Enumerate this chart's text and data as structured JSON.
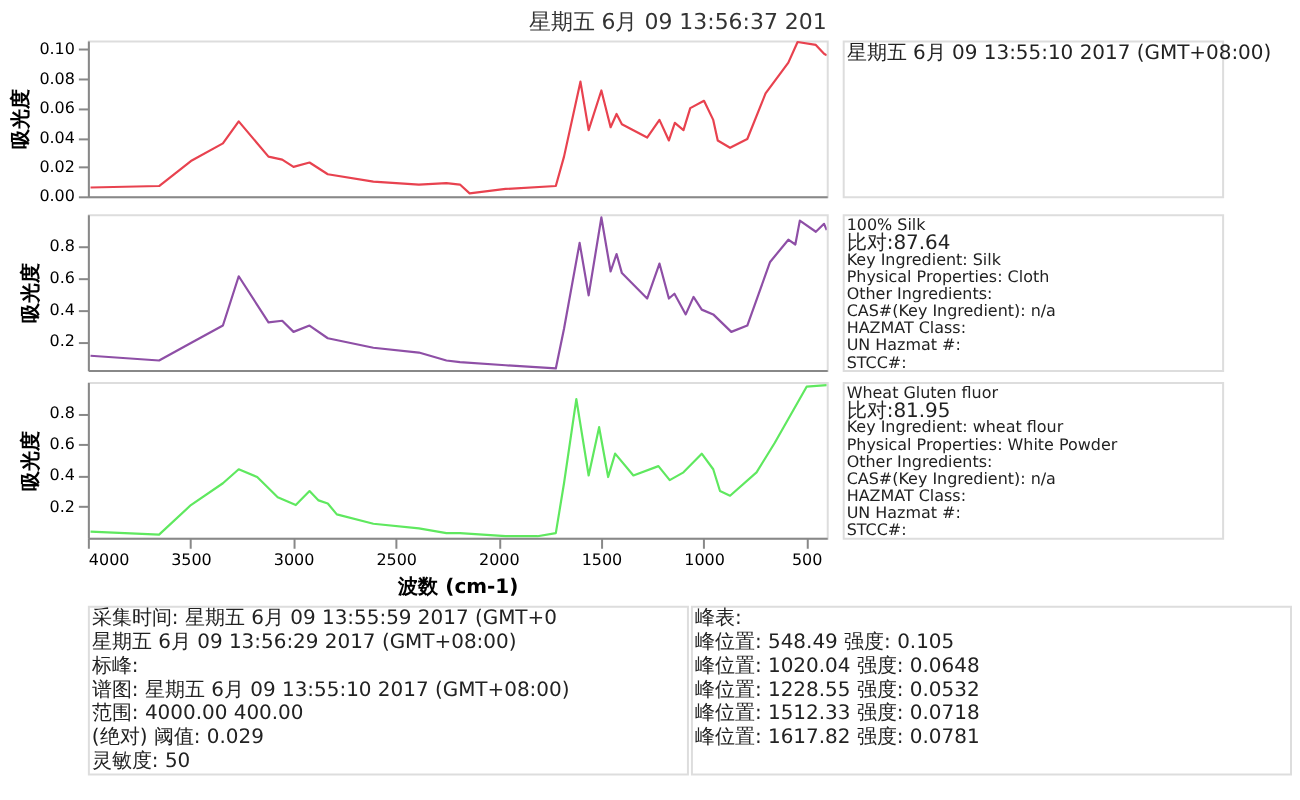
{
  "chart_data": [
    {
      "type": "line",
      "title": "星期五 6月 09 13:56:37 201",
      "ylabel": "吸光度",
      "xlim": [
        4000,
        400
      ],
      "xticks": [
        4000,
        3500,
        3000,
        2500,
        2000,
        1500,
        1000,
        500
      ],
      "ylim": [
        0,
        0.106
      ],
      "yticks": [
        {
          "value": 0,
          "label": "0.00"
        },
        {
          "value": 0.02,
          "label": "0.02"
        },
        {
          "value": 0.04,
          "label": "0.04"
        },
        {
          "value": 0.06,
          "label": "0.06"
        },
        {
          "value": 0.08,
          "label": "0.08"
        },
        {
          "value": 0.1,
          "label": "0.10"
        }
      ],
      "tick_labels": "y",
      "series": [
        {
          "color": "#e8424f",
          "x": [
            3987,
            3653,
            3498,
            3342,
            3265,
            3120,
            3053,
            2998,
            2920,
            2831,
            2609,
            2387,
            2253,
            2187,
            2140,
            1965,
            1720,
            1680,
            1600,
            1560,
            1498,
            1453,
            1424,
            1398,
            1275,
            1215,
            1169,
            1140,
            1098,
            1065,
            998,
            953,
            931,
            871,
            787,
            698,
            587,
            542,
            453,
            413,
            400
          ],
          "values": [
            0.006,
            0.007,
            0.024,
            0.036,
            0.051,
            0.027,
            0.025,
            0.02,
            0.023,
            0.015,
            0.01,
            0.008,
            0.009,
            0.008,
            0.002,
            0.005,
            0.007,
            0.027,
            0.078,
            0.045,
            0.072,
            0.047,
            0.056,
            0.049,
            0.04,
            0.052,
            0.038,
            0.05,
            0.045,
            0.06,
            0.065,
            0.052,
            0.038,
            0.033,
            0.039,
            0.07,
            0.091,
            0.105,
            0.103,
            0.097,
            0.096
          ]
        }
      ],
      "annotations": [
        "星期五 6月 09 13:55:10 2017 (GMT+08:00)"
      ]
    },
    {
      "type": "line",
      "ylabel": "吸光度",
      "xlim": [
        4000,
        400
      ],
      "xticks": [
        4000,
        3500,
        3000,
        2500,
        2000,
        1500,
        1000,
        500
      ],
      "ylim": [
        0.02,
        1.0
      ],
      "yticks": [
        0.2,
        0.4,
        0.6,
        0.8
      ],
      "tick_labels": "y",
      "series": [
        {
          "color": "#8e4fa6",
          "x": [
            3987,
            3653,
            3498,
            3342,
            3265,
            3120,
            3053,
            2998,
            2920,
            2831,
            2609,
            2387,
            2253,
            2187,
            1965,
            1720,
            1680,
            1604,
            1560,
            1498,
            1453,
            1424,
            1398,
            1275,
            1215,
            1169,
            1142,
            1087,
            1049,
            1009,
            953,
            865,
            787,
            676,
            587,
            553,
            531,
            453,
            413,
            400
          ],
          "values": [
            0.11,
            0.08,
            0.19,
            0.3,
            0.61,
            0.32,
            0.33,
            0.26,
            0.3,
            0.22,
            0.16,
            0.13,
            0.08,
            0.07,
            0.05,
            0.03,
            0.28,
            0.82,
            0.49,
            0.98,
            0.64,
            0.75,
            0.63,
            0.47,
            0.69,
            0.47,
            0.5,
            0.37,
            0.48,
            0.4,
            0.37,
            0.26,
            0.3,
            0.7,
            0.84,
            0.81,
            0.96,
            0.89,
            0.94,
            0.9
          ]
        }
      ],
      "annotations": [
        "100% Silk",
        "比对:87.64",
        "Key Ingredient:  Silk",
        "Physical Properties:  Cloth",
        "Other Ingredients:",
        "CAS#(Key Ingredient):  n/a",
        "HAZMAT Class:",
        "UN Hazmat #:",
        "STCC#:"
      ]
    },
    {
      "type": "line",
      "ylabel": "吸光度",
      "xlabel": "波数 (cm-1)",
      "xlim": [
        4000,
        400
      ],
      "xticks": [
        4000,
        3500,
        3000,
        2500,
        2000,
        1500,
        1000,
        500
      ],
      "ylim": [
        0,
        1.0
      ],
      "yticks": [
        0.2,
        0.4,
        0.6,
        0.8
      ],
      "series": [
        {
          "color": "#5fe85f",
          "x": [
            3987,
            3653,
            3498,
            3342,
            3265,
            3175,
            3075,
            2987,
            2920,
            2876,
            2831,
            2787,
            2609,
            2387,
            2253,
            2187,
            1965,
            1809,
            1720,
            1680,
            1620,
            1560,
            1509,
            1465,
            1431,
            1342,
            1220,
            1165,
            1098,
            1009,
            953,
            920,
            871,
            742,
            653,
            498,
            400
          ],
          "values": [
            0.04,
            0.02,
            0.21,
            0.35,
            0.44,
            0.39,
            0.26,
            0.21,
            0.3,
            0.24,
            0.22,
            0.15,
            0.09,
            0.06,
            0.03,
            0.03,
            0.01,
            0.01,
            0.03,
            0.35,
            0.89,
            0.4,
            0.71,
            0.39,
            0.54,
            0.4,
            0.46,
            0.37,
            0.42,
            0.54,
            0.44,
            0.3,
            0.27,
            0.42,
            0.61,
            0.97,
            0.98
          ]
        }
      ],
      "annotations": [
        "Wheat Gluten fluor",
        "比对:81.95",
        "Key Ingredient:  wheat flour",
        "Physical Properties:  White Powder",
        "Other Ingredients:",
        "CAS#(Key Ingredient):  n/a",
        "HAZMAT Class:",
        "UN Hazmat #:",
        "STCC#:"
      ]
    },
    {
      "type": "other",
      "annotations": [
        "采集时间: 星期五 6月 09 13:55:59 2017 (GMT+0",
        "星期五 6月 09 13:56:29 2017 (GMT+08:00)",
        "标峰:",
        "谱图:  星期五 6月 09 13:55:10 2017 (GMT+08:00)",
        "范围:  4000.00    400.00",
        "(绝对) 阈值:    0.029",
        "灵敏度: 50",
        "峰表:",
        "峰位置:   548.49    强度:  0.105",
        "峰位置:  1020.04    强度:  0.0648",
        "峰位置:  1228.55    强度:  0.0532",
        "峰位置:  1512.33    强度:  0.0718",
        "峰位置:  1617.82    强度:  0.0781"
      ]
    }
  ]
}
